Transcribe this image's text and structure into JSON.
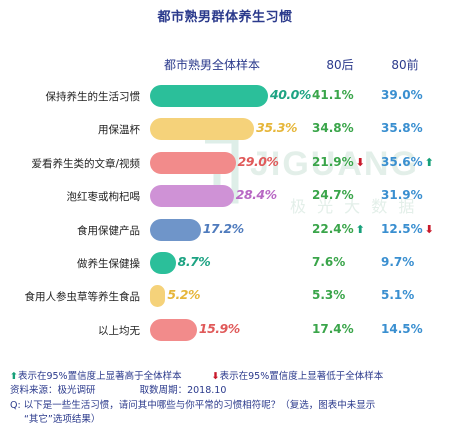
{
  "title": "都市熟男群体养生习惯",
  "columns": {
    "all": "都市熟男全体样本",
    "post80": "80后",
    "pre80": "80前"
  },
  "chart_data": {
    "type": "bar",
    "orientation": "horizontal",
    "title": "都市熟男群体养生习惯",
    "categories": [
      "保持养生的生活习惯",
      "用保温杯",
      "爱看养生类的文章/视频",
      "泡红枣或枸杞喝",
      "食用保健产品",
      "做养生保健操",
      "食用人参虫草等养生食品",
      "以上均无"
    ],
    "series": [
      {
        "name": "都市熟男全体样本",
        "values": [
          40.0,
          35.3,
          29.0,
          28.4,
          17.2,
          8.7,
          5.2,
          15.9
        ],
        "labels": [
          "40.0%",
          "35.3%",
          "29.0%",
          "28.4%",
          "17.2%",
          "8.7%",
          "5.2%",
          "15.9%"
        ]
      },
      {
        "name": "80后",
        "values": [
          41.1,
          34.8,
          21.9,
          24.7,
          22.4,
          7.6,
          5.3,
          17.4
        ],
        "labels": [
          "41.1%",
          "34.8%",
          "21.9%",
          "24.7%",
          "22.4%",
          "7.6%",
          "5.3%",
          "17.4%"
        ]
      },
      {
        "name": "80前",
        "values": [
          39.0,
          35.8,
          35.6,
          31.9,
          12.5,
          9.7,
          5.1,
          14.5
        ],
        "labels": [
          "39.0%",
          "35.8%",
          "35.6%",
          "31.9%",
          "12.5%",
          "9.7%",
          "5.1%",
          "14.5%"
        ]
      }
    ],
    "bar_colors": [
      "#2bbf9a",
      "#f5d27a",
      "#f28b8b",
      "#cf92d6",
      "#6f95c9",
      "#2bbf9a",
      "#f5d27a",
      "#f28b8b"
    ],
    "value_label_colors": [
      "#1da383",
      "#e6b63a",
      "#e05a5a",
      "#b868c4",
      "#4f7bbd",
      "#1da383",
      "#e6b63a",
      "#e05a5a"
    ],
    "significance": {
      "post80": [
        "",
        "",
        "down",
        "",
        "up",
        "",
        "",
        ""
      ],
      "pre80": [
        "",
        "",
        "up",
        "",
        "down",
        "",
        "",
        ""
      ]
    },
    "xlim": [
      0,
      40
    ]
  },
  "watermark": {
    "brand": "JIGUANG",
    "sub": "极 光 大 数 据"
  },
  "footer": {
    "legend_up": "表示在95%置信度上显著高于全体样本",
    "legend_down": "表示在95%置信度上显著低于全体样本",
    "source": "资料来源：极光调研",
    "period": "取数周期：2018.10",
    "question_line1": "Q: 以下是一些生活习惯，请问其中哪些与你平常的习惯相符呢？（复选，图表中未显示",
    "question_line2": "“其它”选项结果）"
  }
}
